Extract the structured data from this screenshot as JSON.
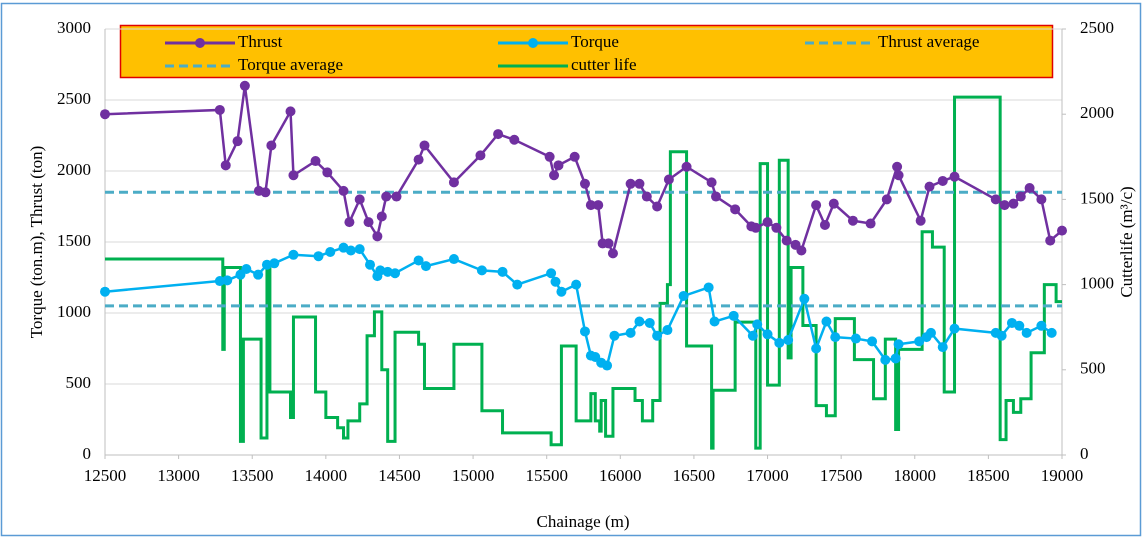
{
  "chart_data": {
    "type": "line",
    "xlabel": "Chainage (m)",
    "ylabel": "Torque (ton.m), Thrust (ton)",
    "y2label": "Cutterlife (m³/c)",
    "xlim": [
      12500,
      19000
    ],
    "xticks": [
      12500,
      13000,
      13500,
      14000,
      14500,
      15000,
      15500,
      16000,
      16500,
      17000,
      17500,
      18000,
      18500,
      19000
    ],
    "ylim": [
      0,
      3000
    ],
    "yticks": [
      0,
      500,
      1000,
      1500,
      2000,
      2500,
      3000
    ],
    "y2lim": [
      0,
      2500
    ],
    "y2ticks": [
      0,
      500,
      1000,
      1500,
      2000,
      2500
    ],
    "grid": true,
    "legend": "top",
    "series": [
      {
        "name": "Thrust",
        "color": "#7030a0",
        "style": "marker",
        "x": [
          12500,
          13280,
          13320,
          13400,
          13450,
          13545,
          13590,
          13630,
          13760,
          13780,
          13930,
          14010,
          14120,
          14160,
          14230,
          14290,
          14350,
          14380,
          14410,
          14480,
          14630,
          14670,
          14870,
          15050,
          15170,
          15280,
          15520,
          15550,
          15580,
          15690,
          15760,
          15800,
          15850,
          15880,
          15920,
          15950,
          16070,
          16130,
          16180,
          16250,
          16330,
          16450,
          16620,
          16650,
          16780,
          16890,
          16920,
          17000,
          17060,
          17130,
          17190,
          17230,
          17330,
          17390,
          17450,
          17580,
          17700,
          17810,
          17880,
          17890,
          18040,
          18100,
          18190,
          18270,
          18550,
          18610,
          18670,
          18720,
          18780,
          18860,
          18920,
          19000
        ],
        "values": [
          2400,
          2430,
          2040,
          2210,
          2600,
          1860,
          1850,
          2180,
          2420,
          1970,
          2070,
          1990,
          1860,
          1640,
          1800,
          1640,
          1540,
          1680,
          1820,
          1820,
          2080,
          2180,
          1920,
          2110,
          2260,
          2220,
          2100,
          1970,
          2040,
          2100,
          1910,
          1760,
          1760,
          1490,
          1490,
          1420,
          1910,
          1910,
          1820,
          1750,
          1940,
          2030,
          1920,
          1820,
          1730,
          1610,
          1600,
          1640,
          1600,
          1510,
          1480,
          1440,
          1760,
          1620,
          1770,
          1650,
          1630,
          1800,
          2030,
          1970,
          1650,
          1890,
          1930,
          1960,
          1800,
          1760,
          1770,
          1820,
          1880,
          1800,
          1510,
          1580
        ]
      },
      {
        "name": "Torque",
        "color": "#00b0f0",
        "style": "marker",
        "x": [
          12500,
          13280,
          13330,
          13420,
          13460,
          13540,
          13600,
          13650,
          13780,
          13950,
          14030,
          14120,
          14170,
          14230,
          14300,
          14350,
          14370,
          14420,
          14470,
          14630,
          14680,
          14870,
          15060,
          15200,
          15300,
          15530,
          15560,
          15600,
          15700,
          15760,
          15800,
          15830,
          15870,
          15910,
          15960,
          16070,
          16130,
          16200,
          16250,
          16320,
          16430,
          16600,
          16640,
          16770,
          16900,
          16930,
          17000,
          17080,
          17140,
          17250,
          17330,
          17400,
          17460,
          17600,
          17710,
          17800,
          17870,
          17890,
          18030,
          18080,
          18110,
          18190,
          18270,
          18550,
          18590,
          18660,
          18710,
          18760,
          18860,
          18930
        ],
        "values": [
          1150,
          1225,
          1230,
          1270,
          1310,
          1270,
          1340,
          1350,
          1410,
          1400,
          1430,
          1460,
          1440,
          1450,
          1340,
          1260,
          1300,
          1290,
          1280,
          1370,
          1330,
          1380,
          1300,
          1290,
          1200,
          1280,
          1220,
          1150,
          1200,
          870,
          700,
          690,
          650,
          630,
          840,
          860,
          940,
          930,
          840,
          880,
          1120,
          1180,
          940,
          980,
          840,
          920,
          850,
          790,
          810,
          1100,
          750,
          940,
          830,
          820,
          800,
          670,
          680,
          780,
          800,
          830,
          860,
          760,
          890,
          860,
          840,
          930,
          910,
          860,
          910,
          860
        ]
      },
      {
        "name": "Thrust average",
        "color": "#4bacc6",
        "style": "dash",
        "x": [
          12500,
          19000
        ],
        "values": [
          1850,
          1850
        ]
      },
      {
        "name": "Torque average",
        "color": "#4bacc6",
        "style": "dash",
        "x": [
          12500,
          19000
        ],
        "values": [
          1050,
          1050
        ]
      },
      {
        "name": "cutter life",
        "color": "#00b050",
        "style": "plain",
        "axis": "y2",
        "x": [
          12500,
          13300,
          13300,
          13310,
          13310,
          13420,
          13420,
          13440,
          13440,
          13560,
          13560,
          13600,
          13600,
          13620,
          13620,
          13760,
          13760,
          13780,
          13780,
          13930,
          13930,
          14000,
          14000,
          14080,
          14080,
          14120,
          14120,
          14150,
          14150,
          14230,
          14230,
          14280,
          14280,
          14330,
          14330,
          14380,
          14380,
          14420,
          14420,
          14470,
          14470,
          14630,
          14630,
          14670,
          14670,
          14870,
          14870,
          15060,
          15060,
          15200,
          15200,
          15530,
          15530,
          15600,
          15600,
          15700,
          15700,
          15800,
          15800,
          15830,
          15830,
          15860,
          15860,
          15870,
          15870,
          15900,
          15900,
          15950,
          15950,
          16100,
          16100,
          16150,
          16150,
          16220,
          16220,
          16270,
          16270,
          16320,
          16320,
          16340,
          16340,
          16450,
          16450,
          16620,
          16620,
          16630,
          16630,
          16780,
          16780,
          16920,
          16920,
          16950,
          16950,
          17000,
          17000,
          17080,
          17080,
          17140,
          17140,
          17160,
          17160,
          17240,
          17240,
          17330,
          17330,
          17400,
          17400,
          17460,
          17460,
          17590,
          17590,
          17720,
          17720,
          17800,
          17800,
          17870,
          17870,
          17890,
          17890,
          18050,
          18050,
          18120,
          18120,
          18200,
          18200,
          18270,
          18270,
          18580,
          18580,
          18620,
          18620,
          18670,
          18670,
          18720,
          18720,
          18790,
          18790,
          18880,
          18880,
          18960,
          18960,
          19000
        ],
        "values": [
          1150,
          1150,
          620,
          620,
          1100,
          1100,
          80,
          80,
          680,
          680,
          100,
          100,
          1100,
          1100,
          370,
          370,
          220,
          220,
          810,
          810,
          370,
          370,
          220,
          220,
          160,
          160,
          100,
          100,
          200,
          200,
          300,
          300,
          700,
          700,
          840,
          840,
          500,
          500,
          80,
          80,
          720,
          720,
          650,
          650,
          390,
          390,
          650,
          650,
          260,
          260,
          130,
          130,
          60,
          60,
          640,
          640,
          200,
          200,
          360,
          360,
          200,
          200,
          140,
          140,
          320,
          320,
          110,
          110,
          390,
          390,
          320,
          320,
          200,
          200,
          320,
          320,
          890,
          890,
          1000,
          1000,
          1780,
          1780,
          640,
          640,
          40,
          40,
          380,
          380,
          780,
          780,
          40,
          40,
          1710,
          1710,
          410,
          410,
          1730,
          1730,
          570,
          570,
          1100,
          1100,
          760,
          760,
          290,
          290,
          230,
          230,
          800,
          800,
          560,
          560,
          330,
          330,
          680,
          680,
          150,
          150,
          620,
          620,
          1310,
          1310,
          1220,
          1220,
          370,
          370,
          2100,
          2100,
          90,
          90,
          320,
          320,
          250,
          250,
          330,
          330,
          600,
          600,
          1000,
          1000,
          900,
          900
        ]
      }
    ]
  }
}
